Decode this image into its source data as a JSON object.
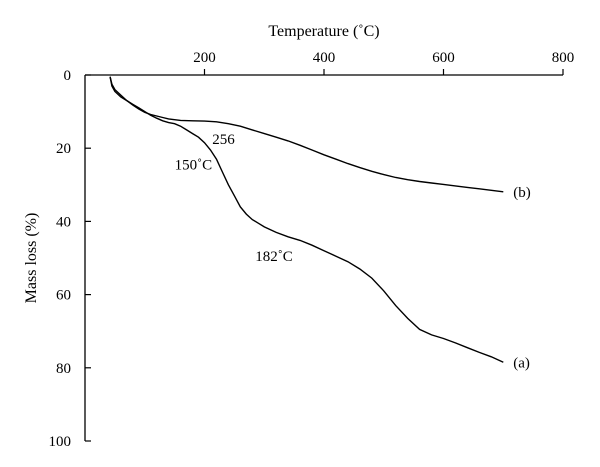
{
  "chart_data": {
    "type": "line",
    "xlabel": "Temperature (˚C)",
    "ylabel": "Mass loss (%)",
    "x_axis_position": "top",
    "y_axis_inverted": true,
    "xlim": [
      0,
      800
    ],
    "ylim": [
      0,
      100
    ],
    "x_ticks": [
      200,
      400,
      600,
      800
    ],
    "y_ticks": [
      0,
      20,
      40,
      60,
      80,
      100
    ],
    "grid": false,
    "series": [
      {
        "name": "(a)",
        "x": [
          42,
          45,
          50,
          60,
          70,
          80,
          90,
          100,
          110,
          120,
          130,
          140,
          150,
          160,
          170,
          180,
          190,
          200,
          210,
          220,
          230,
          240,
          250,
          260,
          270,
          280,
          290,
          300,
          320,
          340,
          360,
          380,
          400,
          420,
          440,
          460,
          480,
          500,
          520,
          540,
          560,
          580,
          600,
          620,
          640,
          660,
          680,
          700
        ],
        "y": [
          0.5,
          3.0,
          4.5,
          6.0,
          7.0,
          8.0,
          9.0,
          10.0,
          11.0,
          11.8,
          12.5,
          13.0,
          13.3,
          14.0,
          15.0,
          16.0,
          17.0,
          18.5,
          20.5,
          23.0,
          26.5,
          30.0,
          33.0,
          36.0,
          38.0,
          39.5,
          40.5,
          41.5,
          43.0,
          44.2,
          45.2,
          46.5,
          48.0,
          49.5,
          51.0,
          53.0,
          55.5,
          59.0,
          63.0,
          66.5,
          69.5,
          71.0,
          72.0,
          73.2,
          74.5,
          75.8,
          77.0,
          78.5
        ]
      },
      {
        "name": "(b)",
        "x": [
          42,
          45,
          50,
          60,
          70,
          80,
          90,
          100,
          110,
          120,
          130,
          140,
          150,
          160,
          180,
          200,
          220,
          240,
          260,
          280,
          300,
          320,
          340,
          360,
          380,
          400,
          420,
          440,
          460,
          480,
          500,
          520,
          540,
          560,
          580,
          600,
          620,
          640,
          660,
          680,
          700
        ],
        "y": [
          0.5,
          2.5,
          4.0,
          5.5,
          7.0,
          8.2,
          9.3,
          10.2,
          10.8,
          11.2,
          11.6,
          12.0,
          12.2,
          12.4,
          12.5,
          12.6,
          12.8,
          13.3,
          14.0,
          15.0,
          16.0,
          17.0,
          18.0,
          19.2,
          20.5,
          21.8,
          23.0,
          24.2,
          25.3,
          26.3,
          27.2,
          28.0,
          28.6,
          29.1,
          29.5,
          29.9,
          30.3,
          30.7,
          31.1,
          31.5,
          31.9
        ]
      }
    ],
    "annotations": [
      {
        "text": "256",
        "x": 213,
        "y": 17.5
      },
      {
        "text": "150˚C",
        "x": 150,
        "y": 24.5
      },
      {
        "text": "182˚C",
        "x": 285,
        "y": 49.5
      }
    ]
  }
}
